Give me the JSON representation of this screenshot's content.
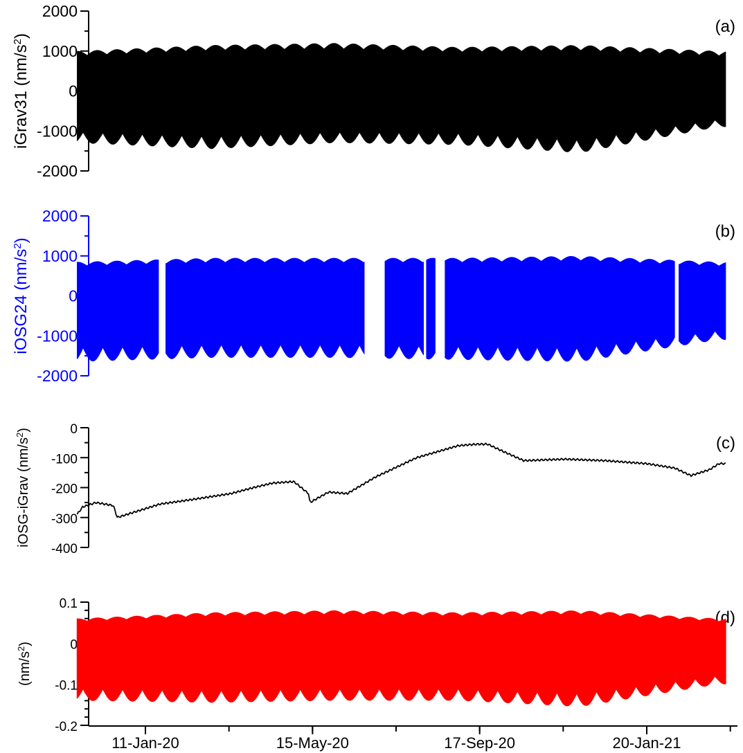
{
  "chart_data": [
    {
      "panel": "(a)",
      "type": "line",
      "ylabel": "iGrav31 (nm/s²)",
      "ylabel_main": "iGrav31 (nm/s",
      "ylabel_unit_tail": ")",
      "ylim": [
        -2000,
        2000
      ],
      "yticks": [
        -2000,
        -1000,
        0,
        1000,
        2000
      ],
      "ytick_labels": [
        "-2000",
        "-1000",
        "0",
        "1000",
        "2000"
      ],
      "color": "#000000",
      "series": [
        {
          "x": [
            "2019-11-20",
            "2020-03-01",
            "2020-06-01",
            "2020-09-01",
            "2020-12-01",
            "2021-03-15"
          ],
          "upper": [
            1000,
            1150,
            1200,
            1100,
            1150,
            1000
          ],
          "lower": [
            -1300,
            -1450,
            -1300,
            -1350,
            -1550,
            -900
          ],
          "values": [
            0,
            50,
            0,
            50,
            0,
            0
          ]
        }
      ]
    },
    {
      "panel": "(b)",
      "type": "line",
      "ylabel": "iOSG24 (nm/s²)",
      "ylabel_main": "iOSG24 (nm/s",
      "ylabel_unit_tail": ")",
      "ylim": [
        -2000,
        2000
      ],
      "yticks": [
        -2000,
        -1000,
        0,
        1000,
        2000
      ],
      "ytick_labels": [
        "-2000",
        "-1000",
        "0",
        "1000",
        "2000"
      ],
      "color": "#0000ff",
      "gaps": [
        [
          "2020-01-21",
          "2020-01-26"
        ],
        [
          "2020-06-23",
          "2020-07-08"
        ],
        [
          "2020-08-06",
          "2020-08-08"
        ],
        [
          "2020-08-15",
          "2020-08-22"
        ],
        [
          "2021-02-10",
          "2021-02-13"
        ]
      ],
      "series": [
        {
          "x": [
            "2019-11-20",
            "2020-03-01",
            "2020-06-01",
            "2020-09-01",
            "2020-12-01",
            "2021-03-15"
          ],
          "upper": [
            850,
            950,
            950,
            950,
            1000,
            850
          ],
          "lower": [
            -1650,
            -1550,
            -1550,
            -1600,
            -1650,
            -1100
          ],
          "values": [
            0,
            0,
            0,
            0,
            0,
            0
          ]
        }
      ]
    },
    {
      "panel": "(c)",
      "type": "line",
      "ylabel": "iOSG-iGrav (nm/s²)",
      "ylabel_main": "iOSG-iGrav (nm/s",
      "ylabel_unit_tail": ")",
      "ylim": [
        -400,
        0
      ],
      "yticks": [
        -400,
        -300,
        -200,
        -100,
        0
      ],
      "ytick_labels": [
        "-400",
        "-300",
        "-200",
        "-100",
        "0"
      ],
      "color": "#000000",
      "series": [
        {
          "x": [
            "2019-11-20",
            "2019-11-25",
            "2019-12-05",
            "2019-12-18",
            "2019-12-21",
            "2019-12-28",
            "2020-01-22",
            "2020-02-15",
            "2020-03-15",
            "2020-04-01",
            "2020-04-15",
            "2020-05-01",
            "2020-05-12",
            "2020-05-13",
            "2020-05-27",
            "2020-06-10",
            "2020-07-01",
            "2020-08-01",
            "2020-09-01",
            "2020-09-15",
            "2020-09-23",
            "2020-10-05",
            "2020-10-20",
            "2020-11-20",
            "2020-12-20",
            "2021-01-20",
            "2021-02-10",
            "2021-02-22",
            "2021-03-08",
            "2021-03-15"
          ],
          "values": [
            -295,
            -265,
            -250,
            -260,
            -300,
            -290,
            -255,
            -240,
            -220,
            -200,
            -185,
            -180,
            -220,
            -250,
            -215,
            -220,
            -165,
            -100,
            -60,
            -55,
            -55,
            -80,
            -110,
            -105,
            -110,
            -120,
            -135,
            -160,
            -140,
            -120
          ]
        }
      ]
    },
    {
      "panel": "(d)",
      "type": "line",
      "ylabel": "(nm/s²)",
      "ylabel_main": "(nm/s",
      "ylabel_unit_tail": ")",
      "ylim": [
        -0.2,
        0.1
      ],
      "yticks": [
        -0.2,
        -0.1,
        0,
        0.1
      ],
      "ytick_labels": [
        "-0.2",
        "-0.1",
        "0",
        "0.1"
      ],
      "color": "#ff0000",
      "series": [
        {
          "x": [
            "2019-11-20",
            "2020-03-01",
            "2020-06-01",
            "2020-09-01",
            "2020-12-01",
            "2021-03-15"
          ],
          "upper": [
            0.06,
            0.075,
            0.08,
            0.075,
            0.08,
            0.06
          ],
          "lower": [
            -0.14,
            -0.145,
            -0.14,
            -0.14,
            -0.155,
            -0.1
          ],
          "values": [
            0,
            0,
            0,
            0,
            0,
            0
          ]
        }
      ]
    }
  ],
  "superscript": "2",
  "x_axis": {
    "xlim": [
      "2019-11-20",
      "2021-03-31"
    ],
    "tick_labels": [
      "11-Jan-20",
      "15-May-20",
      "17-Sep-20",
      "20-Jan-21"
    ],
    "tick_dates": [
      "2020-01-11",
      "2020-05-15",
      "2020-09-17",
      "2021-01-20"
    ]
  }
}
